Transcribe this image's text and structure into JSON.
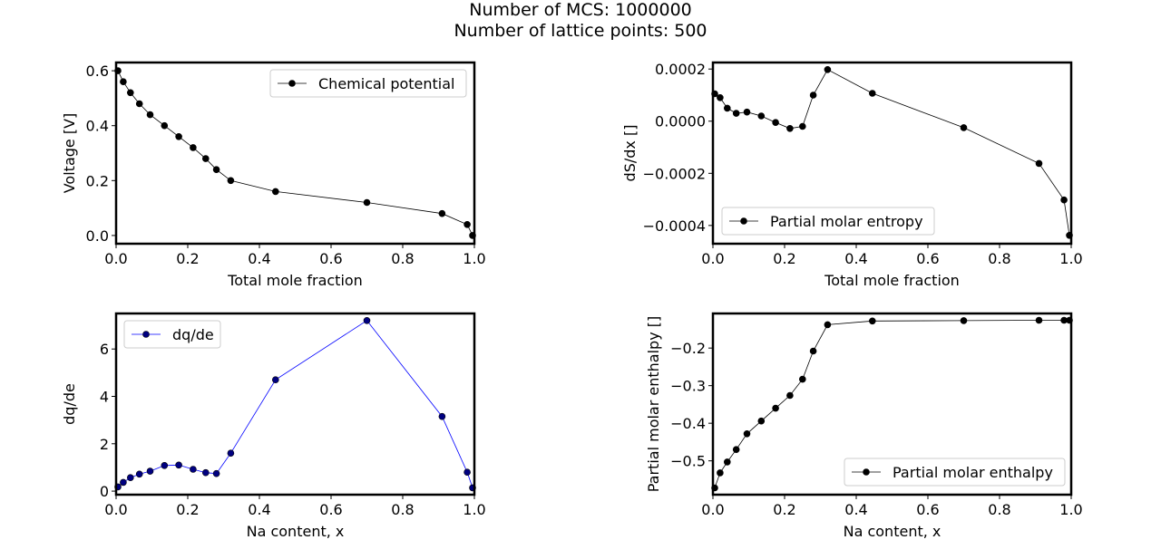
{
  "figure": {
    "suptitle_lines": [
      "Number of MCS: 1000000",
      "Number of lattice points: 500"
    ]
  },
  "chart_data": [
    {
      "type": "line",
      "title": "",
      "xlabel": "Total mole fraction",
      "ylabel": "Voltage [V]",
      "xlim": [
        0.0,
        1.0
      ],
      "ylim": [
        -0.03,
        0.63
      ],
      "xticks": [
        0.0,
        0.2,
        0.4,
        0.6,
        0.8,
        1.0
      ],
      "yticks": [
        0.0,
        0.2,
        0.4,
        0.6
      ],
      "xtick_labels": [
        "0.0",
        "0.2",
        "0.4",
        "0.6",
        "0.8",
        "1.0"
      ],
      "ytick_labels": [
        "0.0",
        "0.2",
        "0.4",
        "0.6"
      ],
      "legend_position": "upper-right",
      "grid": false,
      "series": [
        {
          "name": "Chemical potential",
          "color": "#000000",
          "marker_fill": "#000000",
          "x": [
            0.005,
            0.02,
            0.04,
            0.065,
            0.095,
            0.135,
            0.175,
            0.215,
            0.25,
            0.28,
            0.32,
            0.445,
            0.7,
            0.91,
            0.98,
            0.995
          ],
          "y": [
            0.6,
            0.56,
            0.52,
            0.48,
            0.44,
            0.4,
            0.36,
            0.32,
            0.28,
            0.24,
            0.2,
            0.16,
            0.12,
            0.08,
            0.04,
            0.0
          ]
        }
      ]
    },
    {
      "type": "line",
      "title": "",
      "xlabel": "Total mole fraction",
      "ylabel": "dS/dx []",
      "xlim": [
        0.0,
        1.0
      ],
      "ylim": [
        -0.00047,
        0.000225
      ],
      "xticks": [
        0.0,
        0.2,
        0.4,
        0.6,
        0.8,
        1.0
      ],
      "yticks": [
        -0.0004,
        -0.0002,
        0.0,
        0.0002
      ],
      "xtick_labels": [
        "0.0",
        "0.2",
        "0.4",
        "0.6",
        "0.8",
        "1.0"
      ],
      "ytick_labels": [
        "−0.0004",
        "−0.0002",
        "0.0000",
        "0.0002"
      ],
      "legend_position": "lower-left",
      "grid": false,
      "series": [
        {
          "name": "Partial molar entropy",
          "color": "#000000",
          "marker_fill": "#000000",
          "x": [
            0.005,
            0.02,
            0.04,
            0.065,
            0.095,
            0.135,
            0.175,
            0.215,
            0.25,
            0.28,
            0.32,
            0.445,
            0.7,
            0.91,
            0.98,
            0.995
          ],
          "y": [
            0.000105,
            9e-05,
            5e-05,
            3e-05,
            3.5e-05,
            2e-05,
            -5e-06,
            -2.8e-05,
            -2e-05,
            0.0001,
            0.000198,
            0.000107,
            -2.5e-05,
            -0.000162,
            -0.000302,
            -0.000438
          ]
        }
      ]
    },
    {
      "type": "line",
      "title": "",
      "xlabel": "Na content, x",
      "ylabel": "dq/de",
      "xlim": [
        0.0,
        1.0
      ],
      "ylim": [
        -0.15,
        7.5
      ],
      "xticks": [
        0.0,
        0.2,
        0.4,
        0.6,
        0.8,
        1.0
      ],
      "yticks": [
        0,
        2,
        4,
        6
      ],
      "xtick_labels": [
        "0.0",
        "0.2",
        "0.4",
        "0.6",
        "0.8",
        "1.0"
      ],
      "ytick_labels": [
        "0",
        "2",
        "4",
        "6"
      ],
      "legend_position": "upper-left",
      "grid": false,
      "series": [
        {
          "name": "dq/de",
          "color": "#0000ff",
          "marker_fill": "#000080",
          "x": [
            0.005,
            0.02,
            0.04,
            0.065,
            0.095,
            0.135,
            0.175,
            0.215,
            0.25,
            0.28,
            0.32,
            0.445,
            0.7,
            0.91,
            0.98,
            0.995
          ],
          "y": [
            0.18,
            0.37,
            0.57,
            0.72,
            0.84,
            1.08,
            1.1,
            0.92,
            0.78,
            0.74,
            1.6,
            4.7,
            7.2,
            3.15,
            0.8,
            0.14
          ]
        }
      ]
    },
    {
      "type": "line",
      "title": "",
      "xlabel": "Na content, x",
      "ylabel": "Partial molar enthalpy []",
      "xlim": [
        0.0,
        1.0
      ],
      "ylim": [
        -0.59,
        -0.108
      ],
      "xticks": [
        0.0,
        0.2,
        0.4,
        0.6,
        0.8,
        1.0
      ],
      "yticks": [
        -0.5,
        -0.4,
        -0.3,
        -0.2
      ],
      "xtick_labels": [
        "0.0",
        "0.2",
        "0.4",
        "0.6",
        "0.8",
        "1.0"
      ],
      "ytick_labels": [
        "−0.5",
        "−0.4",
        "−0.3",
        "−0.2"
      ],
      "legend_position": "lower-right",
      "grid": false,
      "series": [
        {
          "name": "Partial molar enthalpy",
          "color": "#000000",
          "marker_fill": "#000000",
          "x": [
            0.005,
            0.02,
            0.04,
            0.065,
            0.095,
            0.135,
            0.175,
            0.215,
            0.25,
            0.28,
            0.32,
            0.445,
            0.7,
            0.91,
            0.98,
            0.995
          ],
          "y": [
            -0.572,
            -0.532,
            -0.503,
            -0.47,
            -0.428,
            -0.394,
            -0.36,
            -0.326,
            -0.283,
            -0.208,
            -0.138,
            -0.128,
            -0.127,
            -0.126,
            -0.126,
            -0.126
          ]
        }
      ]
    }
  ]
}
